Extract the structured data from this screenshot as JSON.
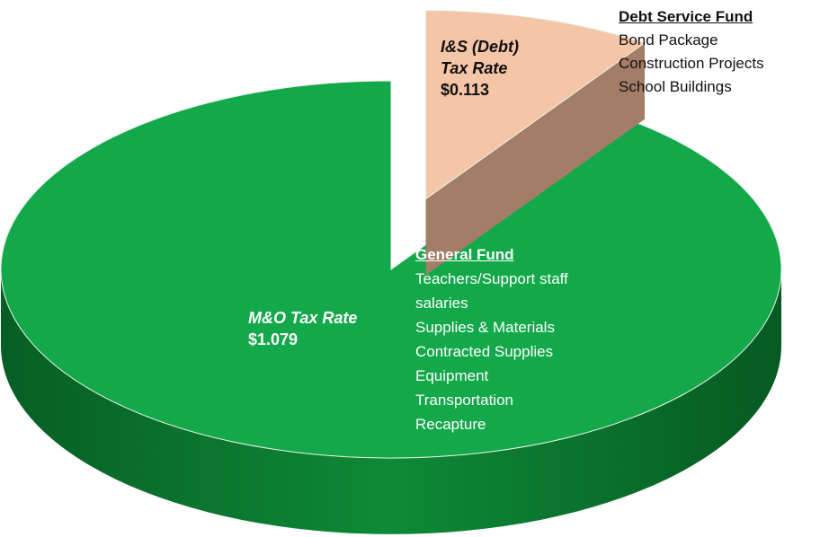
{
  "chart_data": {
    "type": "pie",
    "categories": [
      "I&S (Debt) Tax Rate",
      "M&O Tax Rate"
    ],
    "values": [
      0.113,
      1.079
    ],
    "value_labels": [
      "$0.113",
      "$1.079"
    ],
    "colors": [
      "#f4c5a6",
      "#13a84a"
    ],
    "side_colors": [
      "#a37d68",
      "#0b7a30"
    ],
    "explode": [
      true,
      false
    ],
    "annotations": [
      {
        "title": "Debt Service Fund",
        "items": [
          "Bond Package",
          "Construction Projects",
          "School Buildings"
        ]
      },
      {
        "title": "General Fund",
        "items": [
          "Teachers/Support staff salaries",
          "Supplies & Materials",
          "Contracted Supplies",
          "Equipment",
          "Transportation",
          "Recapture"
        ]
      }
    ]
  }
}
